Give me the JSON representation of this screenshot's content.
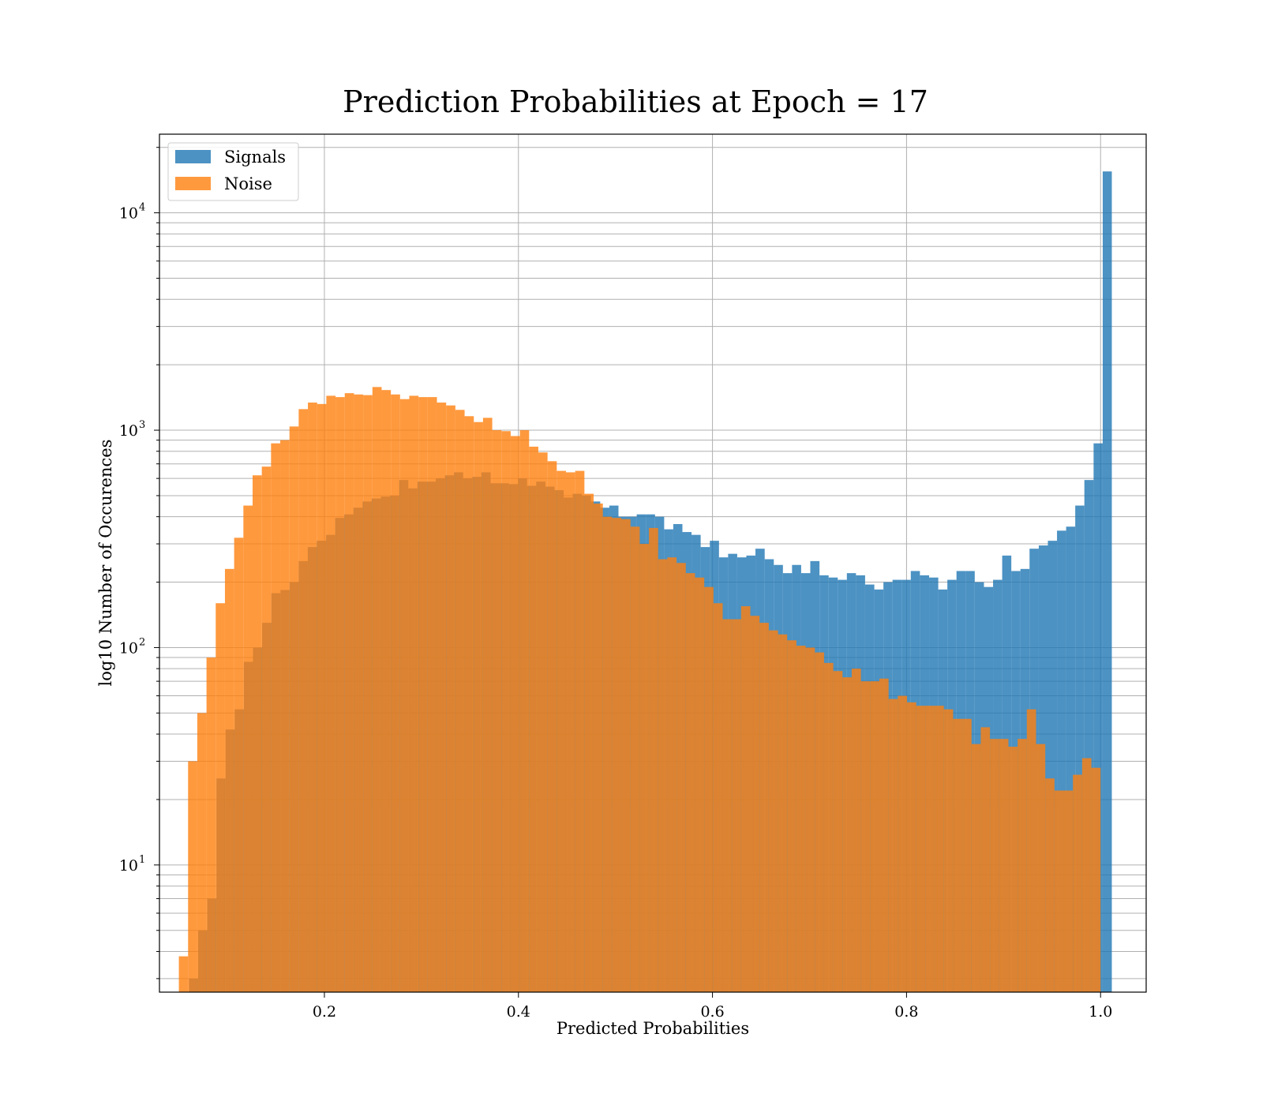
{
  "chart_data": {
    "type": "bar",
    "title": "Prediction Probabilities at Epoch = 17",
    "xlabel": "Predicted Probabilities",
    "ylabel": "log10 Number of Occurences",
    "yscale": "log",
    "xlim": [
      0.03,
      1.047
    ],
    "ylim": [
      2.6,
      23000
    ],
    "grid": true,
    "legend_position": "top-left",
    "x_ticks": [
      "0.2",
      "0.4",
      "0.6",
      "0.8",
      "1.0"
    ],
    "y_ticks": [
      {
        "base": "10",
        "exp": "1"
      },
      {
        "base": "10",
        "exp": "2"
      },
      {
        "base": "10",
        "exp": "3"
      },
      {
        "base": "10",
        "exp": "4"
      }
    ],
    "series": [
      {
        "name": "Signals",
        "color": "#1f77b4",
        "bins": [
          [
            0.0605,
            0.0699,
            3
          ],
          [
            0.0699,
            0.0793,
            5
          ],
          [
            0.0793,
            0.0888,
            7
          ],
          [
            0.0888,
            0.0982,
            25
          ],
          [
            0.0982,
            0.1076,
            42
          ],
          [
            0.1076,
            0.117,
            52
          ],
          [
            0.117,
            0.1264,
            86
          ],
          [
            0.1264,
            0.1358,
            100
          ],
          [
            0.1358,
            0.1453,
            130
          ],
          [
            0.1453,
            0.1547,
            178
          ],
          [
            0.1547,
            0.1641,
            184
          ],
          [
            0.1641,
            0.1735,
            200
          ],
          [
            0.1735,
            0.1829,
            250
          ],
          [
            0.1829,
            0.1923,
            290
          ],
          [
            0.1923,
            0.2018,
            310
          ],
          [
            0.2018,
            0.2112,
            330
          ],
          [
            0.2112,
            0.2206,
            395
          ],
          [
            0.2206,
            0.23,
            410
          ],
          [
            0.23,
            0.2394,
            440
          ],
          [
            0.2394,
            0.2488,
            470
          ],
          [
            0.2488,
            0.2583,
            485
          ],
          [
            0.2583,
            0.2677,
            495
          ],
          [
            0.2677,
            0.2771,
            500
          ],
          [
            0.2771,
            0.2865,
            590
          ],
          [
            0.2865,
            0.2959,
            540
          ],
          [
            0.2959,
            0.3053,
            580
          ],
          [
            0.3053,
            0.3148,
            580
          ],
          [
            0.3148,
            0.3242,
            600
          ],
          [
            0.3242,
            0.3336,
            620
          ],
          [
            0.3336,
            0.343,
            640
          ],
          [
            0.343,
            0.3524,
            600
          ],
          [
            0.3524,
            0.3618,
            610
          ],
          [
            0.3618,
            0.3713,
            640
          ],
          [
            0.3713,
            0.3807,
            570
          ],
          [
            0.3807,
            0.3901,
            570
          ],
          [
            0.3901,
            0.3995,
            565
          ],
          [
            0.3995,
            0.4089,
            600
          ],
          [
            0.4089,
            0.4183,
            555
          ],
          [
            0.4183,
            0.4278,
            580
          ],
          [
            0.4278,
            0.4372,
            550
          ],
          [
            0.4372,
            0.4466,
            530
          ],
          [
            0.4466,
            0.456,
            490
          ],
          [
            0.456,
            0.4654,
            510
          ],
          [
            0.4654,
            0.4748,
            500
          ],
          [
            0.4748,
            0.4843,
            470
          ],
          [
            0.4843,
            0.4937,
            440
          ],
          [
            0.4937,
            0.5031,
            450
          ],
          [
            0.5031,
            0.5125,
            400
          ],
          [
            0.5125,
            0.5219,
            400
          ],
          [
            0.5219,
            0.5313,
            410
          ],
          [
            0.5313,
            0.5408,
            410
          ],
          [
            0.5408,
            0.5502,
            400
          ],
          [
            0.5502,
            0.5596,
            350
          ],
          [
            0.5596,
            0.569,
            370
          ],
          [
            0.569,
            0.5784,
            340
          ],
          [
            0.5784,
            0.5878,
            330
          ],
          [
            0.5878,
            0.5973,
            290
          ],
          [
            0.5973,
            0.6067,
            310
          ],
          [
            0.6067,
            0.6161,
            260
          ],
          [
            0.6161,
            0.6255,
            270
          ],
          [
            0.6255,
            0.6349,
            260
          ],
          [
            0.6349,
            0.6443,
            265
          ],
          [
            0.6443,
            0.6538,
            285
          ],
          [
            0.6538,
            0.6632,
            255
          ],
          [
            0.6632,
            0.6726,
            240
          ],
          [
            0.6726,
            0.682,
            220
          ],
          [
            0.682,
            0.6914,
            240
          ],
          [
            0.6914,
            0.7008,
            220
          ],
          [
            0.7008,
            0.7103,
            250
          ],
          [
            0.7103,
            0.7197,
            215
          ],
          [
            0.7197,
            0.7291,
            210
          ],
          [
            0.7291,
            0.7385,
            205
          ],
          [
            0.7385,
            0.7479,
            220
          ],
          [
            0.7479,
            0.7573,
            215
          ],
          [
            0.7573,
            0.7668,
            195
          ],
          [
            0.7668,
            0.7762,
            185
          ],
          [
            0.7762,
            0.7856,
            200
          ],
          [
            0.7856,
            0.795,
            205
          ],
          [
            0.795,
            0.8044,
            205
          ],
          [
            0.8044,
            0.8138,
            225
          ],
          [
            0.8138,
            0.8233,
            215
          ],
          [
            0.8233,
            0.8327,
            210
          ],
          [
            0.8327,
            0.8421,
            185
          ],
          [
            0.8421,
            0.8515,
            205
          ],
          [
            0.8515,
            0.8609,
            225
          ],
          [
            0.8609,
            0.8703,
            225
          ],
          [
            0.8703,
            0.8798,
            200
          ],
          [
            0.8798,
            0.8892,
            190
          ],
          [
            0.8892,
            0.8986,
            205
          ],
          [
            0.8986,
            0.908,
            265
          ],
          [
            0.908,
            0.9174,
            225
          ],
          [
            0.9174,
            0.9268,
            230
          ],
          [
            0.9268,
            0.9363,
            285
          ],
          [
            0.9363,
            0.9457,
            295
          ],
          [
            0.9457,
            0.9551,
            310
          ],
          [
            0.9551,
            0.9645,
            345
          ],
          [
            0.9645,
            0.9739,
            360
          ],
          [
            0.9739,
            0.9833,
            450
          ],
          [
            0.9833,
            0.9928,
            590
          ],
          [
            0.9928,
            1.0022,
            870
          ],
          [
            1.0022,
            1.0116,
            15500
          ]
        ]
      },
      {
        "name": "Noise",
        "color": "#ff7f0e",
        "bins": [
          [
            0.05,
            0.0595,
            3.8
          ],
          [
            0.0595,
            0.069,
            30
          ],
          [
            0.069,
            0.0785,
            50
          ],
          [
            0.0785,
            0.088,
            90
          ],
          [
            0.088,
            0.0975,
            160
          ],
          [
            0.0975,
            0.107,
            230
          ],
          [
            0.107,
            0.1165,
            320
          ],
          [
            0.1165,
            0.126,
            450
          ],
          [
            0.126,
            0.1355,
            620
          ],
          [
            0.1355,
            0.145,
            680
          ],
          [
            0.145,
            0.1545,
            870
          ],
          [
            0.1545,
            0.164,
            900
          ],
          [
            0.164,
            0.1735,
            1040
          ],
          [
            0.1735,
            0.183,
            1250
          ],
          [
            0.183,
            0.1925,
            1340
          ],
          [
            0.1925,
            0.202,
            1320
          ],
          [
            0.202,
            0.2115,
            1440
          ],
          [
            0.2115,
            0.221,
            1420
          ],
          [
            0.221,
            0.2305,
            1480
          ],
          [
            0.2305,
            0.24,
            1460
          ],
          [
            0.24,
            0.2495,
            1450
          ],
          [
            0.2495,
            0.259,
            1580
          ],
          [
            0.259,
            0.2685,
            1530
          ],
          [
            0.2685,
            0.278,
            1460
          ],
          [
            0.278,
            0.2875,
            1390
          ],
          [
            0.2875,
            0.297,
            1440
          ],
          [
            0.297,
            0.3065,
            1420
          ],
          [
            0.3065,
            0.316,
            1420
          ],
          [
            0.316,
            0.3255,
            1340
          ],
          [
            0.3255,
            0.335,
            1300
          ],
          [
            0.335,
            0.3445,
            1240
          ],
          [
            0.3445,
            0.354,
            1160
          ],
          [
            0.354,
            0.3635,
            1090
          ],
          [
            0.3635,
            0.373,
            1140
          ],
          [
            0.373,
            0.3825,
            1000
          ],
          [
            0.3825,
            0.392,
            990
          ],
          [
            0.392,
            0.4015,
            940
          ],
          [
            0.4015,
            0.411,
            1000
          ],
          [
            0.411,
            0.4205,
            840
          ],
          [
            0.4205,
            0.43,
            790
          ],
          [
            0.43,
            0.4395,
            720
          ],
          [
            0.4395,
            0.449,
            650
          ],
          [
            0.449,
            0.4585,
            640
          ],
          [
            0.4585,
            0.468,
            650
          ],
          [
            0.468,
            0.4775,
            510
          ],
          [
            0.4775,
            0.487,
            460
          ],
          [
            0.487,
            0.4965,
            400
          ],
          [
            0.4965,
            0.506,
            395
          ],
          [
            0.506,
            0.5155,
            390
          ],
          [
            0.5155,
            0.525,
            360
          ],
          [
            0.525,
            0.5345,
            300
          ],
          [
            0.5345,
            0.544,
            355
          ],
          [
            0.544,
            0.5535,
            255
          ],
          [
            0.5535,
            0.563,
            260
          ],
          [
            0.563,
            0.5725,
            245
          ],
          [
            0.5725,
            0.582,
            220
          ],
          [
            0.582,
            0.5915,
            210
          ],
          [
            0.5915,
            0.601,
            190
          ],
          [
            0.601,
            0.6105,
            160
          ],
          [
            0.6105,
            0.62,
            135
          ],
          [
            0.62,
            0.6295,
            135
          ],
          [
            0.6295,
            0.639,
            155
          ],
          [
            0.639,
            0.6485,
            140
          ],
          [
            0.6485,
            0.658,
            130
          ],
          [
            0.658,
            0.6675,
            120
          ],
          [
            0.6675,
            0.677,
            115
          ],
          [
            0.677,
            0.6865,
            108
          ],
          [
            0.6865,
            0.696,
            102
          ],
          [
            0.696,
            0.7055,
            100
          ],
          [
            0.7055,
            0.715,
            95
          ],
          [
            0.715,
            0.7245,
            85
          ],
          [
            0.7245,
            0.734,
            78
          ],
          [
            0.734,
            0.7435,
            73
          ],
          [
            0.7435,
            0.753,
            80
          ],
          [
            0.753,
            0.7625,
            70
          ],
          [
            0.7625,
            0.772,
            70
          ],
          [
            0.772,
            0.7815,
            72
          ],
          [
            0.7815,
            0.791,
            58
          ],
          [
            0.791,
            0.8005,
            60
          ],
          [
            0.8005,
            0.81,
            56
          ],
          [
            0.81,
            0.8195,
            54
          ],
          [
            0.8195,
            0.829,
            54
          ],
          [
            0.829,
            0.8385,
            54
          ],
          [
            0.8385,
            0.848,
            52
          ],
          [
            0.848,
            0.8575,
            47
          ],
          [
            0.8575,
            0.867,
            47
          ],
          [
            0.867,
            0.8765,
            36
          ],
          [
            0.8765,
            0.886,
            43
          ],
          [
            0.886,
            0.8955,
            38
          ],
          [
            0.8955,
            0.905,
            38
          ],
          [
            0.905,
            0.9145,
            35
          ],
          [
            0.9145,
            0.924,
            38
          ],
          [
            0.924,
            0.9335,
            52
          ],
          [
            0.9335,
            0.943,
            36
          ],
          [
            0.943,
            0.9525,
            25
          ],
          [
            0.9525,
            0.962,
            22
          ],
          [
            0.962,
            0.9715,
            22
          ],
          [
            0.9715,
            0.981,
            26
          ],
          [
            0.981,
            0.9905,
            31
          ],
          [
            0.9905,
            1.0,
            28
          ]
        ]
      }
    ]
  }
}
